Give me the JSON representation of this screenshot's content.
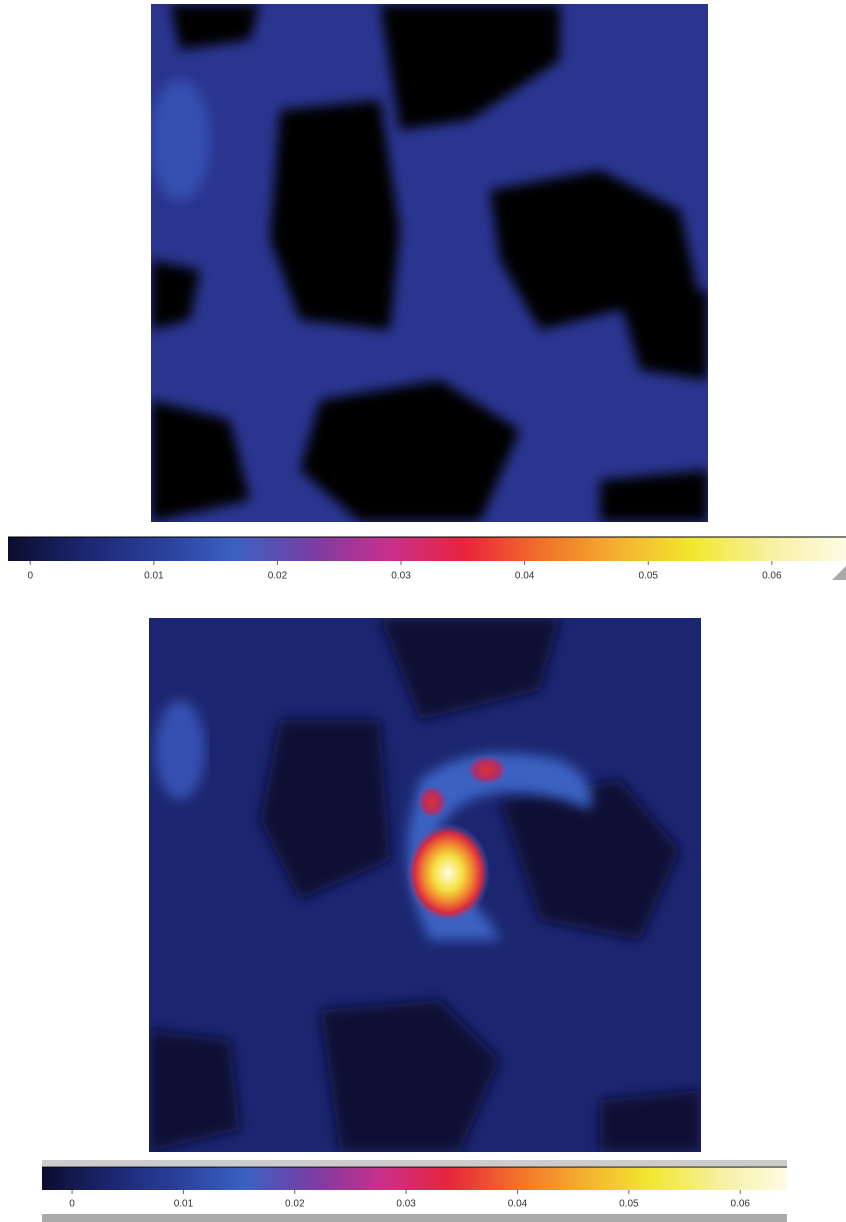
{
  "chart_data": [
    {
      "type": "colorbar",
      "zlim": [
        -0.0018,
        0.066
      ],
      "zticks": [
        0,
        0.01,
        0.02,
        0.03,
        0.04,
        0.05,
        0.06
      ],
      "colormap": [
        "#0c0c2e",
        "#1c2670",
        "#2a3f9a",
        "#3a62c2",
        "#7a3da4",
        "#c8308c",
        "#e8243c",
        "#f2702a",
        "#f4b030",
        "#f2e830",
        "#f6f0a0",
        "#fffbe4"
      ]
    },
    {
      "type": "colorbar",
      "zlim": [
        -0.0027,
        0.0642
      ],
      "zticks": [
        0,
        0.01,
        0.02,
        0.03,
        0.04,
        0.05,
        0.06
      ],
      "colormap": [
        "#0c0c2e",
        "#1c2670",
        "#2a3f9a",
        "#3a62c2",
        "#7a3da4",
        "#c8308c",
        "#e8243c",
        "#f2702a",
        "#f4b030",
        "#f2e830",
        "#f6f0a0",
        "#fffbe4"
      ]
    }
  ]
}
